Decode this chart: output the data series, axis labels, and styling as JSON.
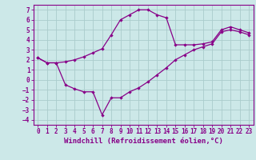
{
  "x": [
    0,
    1,
    2,
    3,
    4,
    5,
    6,
    7,
    8,
    9,
    10,
    11,
    12,
    13,
    14,
    15,
    16,
    17,
    18,
    19,
    20,
    21,
    22,
    23
  ],
  "y_upper": [
    2.2,
    1.7,
    1.7,
    1.8,
    2.0,
    2.3,
    2.7,
    3.1,
    4.5,
    6.0,
    6.5,
    7.0,
    7.0,
    6.5,
    6.2,
    3.5,
    3.5,
    3.5,
    3.6,
    3.8,
    5.0,
    5.3,
    5.0,
    4.7
  ],
  "y_lower": [
    2.2,
    1.7,
    1.7,
    -0.5,
    -0.9,
    -1.2,
    -1.2,
    -3.5,
    -1.8,
    -1.8,
    -1.2,
    -0.8,
    -0.2,
    0.5,
    1.2,
    2.0,
    2.5,
    3.0,
    3.3,
    3.6,
    4.8,
    5.0,
    4.8,
    4.5
  ],
  "color": "#880088",
  "bg_color": "#cce8e8",
  "grid_color": "#aacccc",
  "xlabel": "Windchill (Refroidissement éolien,°C)",
  "ylim": [
    -4.5,
    7.5
  ],
  "xlim": [
    -0.5,
    23.5
  ],
  "yticks": [
    7,
    6,
    5,
    4,
    3,
    2,
    1,
    0,
    -1,
    -2,
    -3,
    -4
  ],
  "xticks": [
    0,
    1,
    2,
    3,
    4,
    5,
    6,
    7,
    8,
    9,
    10,
    11,
    12,
    13,
    14,
    15,
    16,
    17,
    18,
    19,
    20,
    21,
    22,
    23
  ],
  "tick_fontsize": 5.5,
  "xlabel_fontsize": 6.5
}
